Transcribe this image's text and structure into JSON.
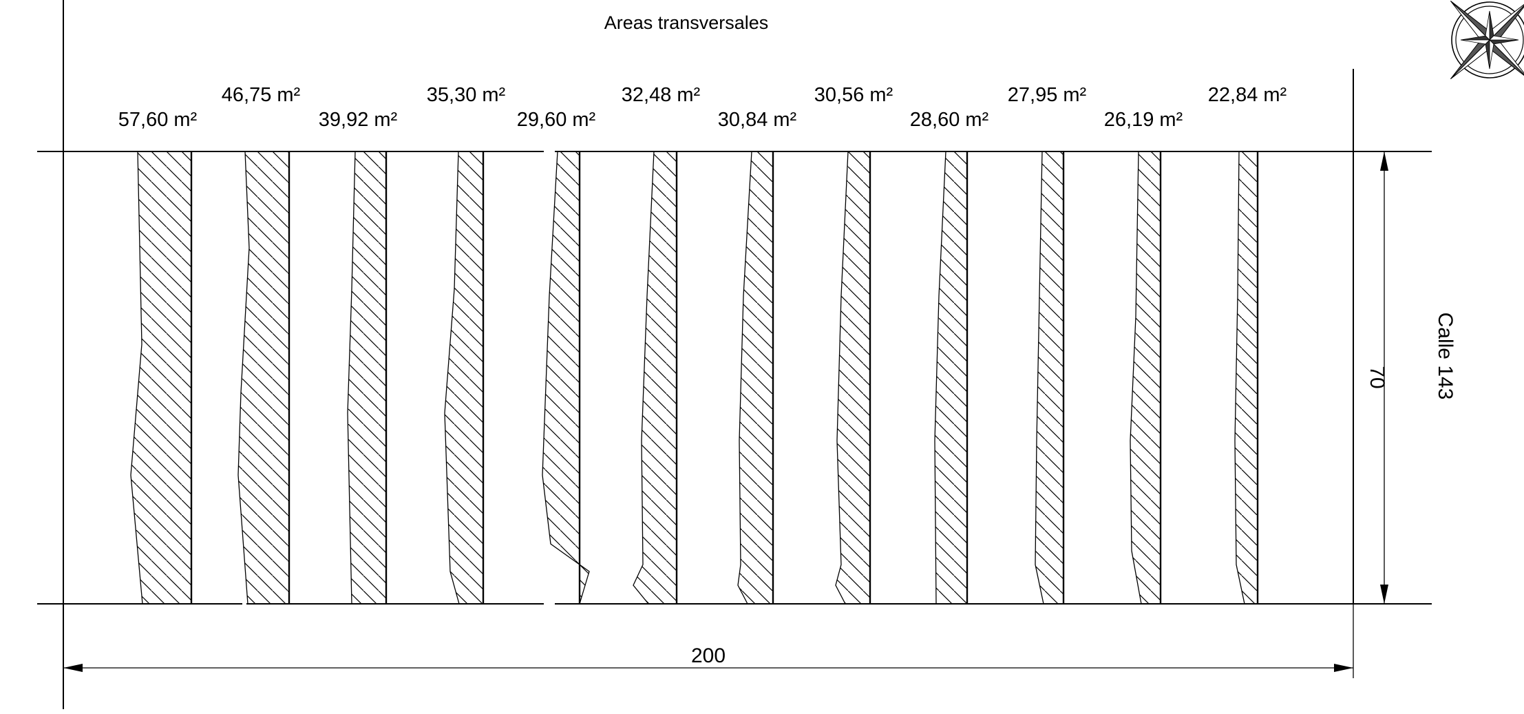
{
  "title": "Areas transversales",
  "sections": [
    {
      "area": "57,60 m²"
    },
    {
      "area": "46,75 m²"
    },
    {
      "area": "39,92 m²"
    },
    {
      "area": "35,30 m²"
    },
    {
      "area": "29,60 m²"
    },
    {
      "area": "32,48 m²"
    },
    {
      "area": "30,84 m²"
    },
    {
      "area": "30,56 m²"
    },
    {
      "area": "28,60 m²"
    },
    {
      "area": "27,95 m²"
    },
    {
      "area": "26,19 m²"
    },
    {
      "area": "22,84 m²"
    }
  ],
  "dimension_width": "200",
  "dimension_height": "70",
  "street_label": "Calle 143",
  "compass": "compass-rose-icon"
}
